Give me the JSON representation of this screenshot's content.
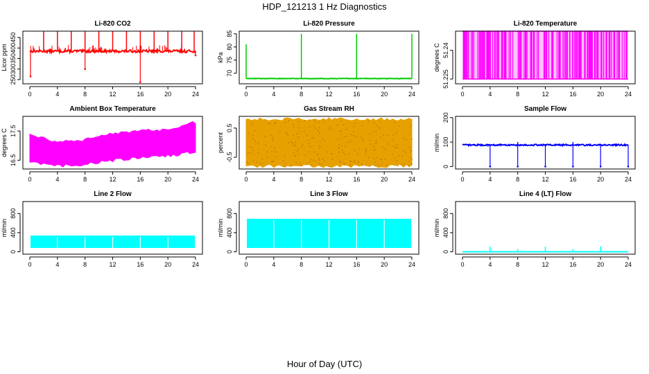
{
  "figure": {
    "title": "HDP_121213  1 Hz Diagnostics",
    "xlabel": "Hour of Day (UTC)"
  },
  "chart_data": [
    {
      "type": "line",
      "title": "Li-820 CO2",
      "ylabel": "Licor ppm",
      "color": "#ff0000",
      "style": "spiky",
      "xticks": [
        0,
        4,
        8,
        12,
        16,
        20,
        24
      ],
      "xlim": [
        0,
        24
      ],
      "yticks": [
        250,
        300,
        350,
        400,
        450
      ],
      "ylim": [
        230,
        480
      ],
      "base": 385,
      "noise": 6,
      "spikes": [
        {
          "x": 2.0,
          "y": 480
        },
        {
          "x": 4.0,
          "y": 480
        },
        {
          "x": 6.0,
          "y": 480
        },
        {
          "x": 8.0,
          "y": 480
        },
        {
          "x": 10.0,
          "y": 480
        },
        {
          "x": 12.0,
          "y": 480
        },
        {
          "x": 14.0,
          "y": 480
        },
        {
          "x": 16.0,
          "y": 480
        },
        {
          "x": 18.0,
          "y": 480
        },
        {
          "x": 20.0,
          "y": 480
        },
        {
          "x": 22.0,
          "y": 480
        },
        {
          "x": 23.8,
          "y": 480
        }
      ],
      "dips": [
        {
          "x": 0.1,
          "y": 265
        },
        {
          "x": 8.0,
          "y": 300
        },
        {
          "x": 16.0,
          "y": 238
        },
        {
          "x": 24.0,
          "y": 365
        }
      ]
    },
    {
      "type": "line",
      "title": "Li-820 Pressure",
      "ylabel": "kPa",
      "color": "#00cc00",
      "style": "spiky",
      "xticks": [
        0,
        4,
        8,
        12,
        16,
        20,
        24
      ],
      "xlim": [
        0,
        24
      ],
      "yticks": [
        70,
        75,
        80,
        85
      ],
      "ylim": [
        66,
        86
      ],
      "base": 68,
      "noise": 0.1,
      "spikes": [
        {
          "x": 0.0,
          "y": 81
        },
        {
          "x": 8.0,
          "y": 85
        },
        {
          "x": 16.0,
          "y": 85
        },
        {
          "x": 24.0,
          "y": 85
        }
      ],
      "dips": []
    },
    {
      "type": "line",
      "title": "Li-820 Temperature",
      "ylabel": "degrees C",
      "color": "#ff00ff",
      "style": "quantized",
      "xticks": [
        0,
        4,
        8,
        12,
        16,
        20,
        24
      ],
      "xlim": [
        0,
        24
      ],
      "yticks": [
        51.225,
        51.24
      ],
      "ylim": [
        51.2225,
        51.25
      ],
      "low": 51.225,
      "high": 51.25
    },
    {
      "type": "area",
      "title": "Ambient Box Temperature",
      "ylabel": "degrees C",
      "color": "#ff00ff",
      "style": "band",
      "xticks": [
        0,
        4,
        8,
        12,
        16,
        20,
        24
      ],
      "xlim": [
        0,
        24
      ],
      "yticks": [
        16.5,
        17.5
      ],
      "ylim": [
        16.2,
        18.0
      ],
      "x": [
        0,
        4,
        8,
        12,
        16,
        20,
        24
      ],
      "lower": [
        16.45,
        16.3,
        16.35,
        16.5,
        16.6,
        16.65,
        16.8
      ],
      "upper": [
        17.4,
        17.1,
        17.2,
        17.4,
        17.5,
        17.55,
        17.8
      ]
    },
    {
      "type": "scatter",
      "title": "Gas Stream RH",
      "ylabel": "percent",
      "color": "#e6a100",
      "style": "band",
      "xticks": [
        0,
        4,
        8,
        12,
        16,
        20,
        24
      ],
      "xlim": [
        0,
        24
      ],
      "yticks": [
        -0.5,
        0.5
      ],
      "ylim": [
        -0.9,
        0.9
      ],
      "x": [
        0,
        24
      ],
      "lower": [
        -0.8,
        -0.8
      ],
      "upper": [
        0.8,
        0.8
      ]
    },
    {
      "type": "line",
      "title": "Sample Flow",
      "ylabel": "ml/min",
      "color": "#0000ff",
      "style": "spiky",
      "xticks": [
        0,
        4,
        8,
        12,
        16,
        20,
        24
      ],
      "xlim": [
        0,
        24
      ],
      "yticks": [
        0,
        100,
        200
      ],
      "ylim": [
        -10,
        205
      ],
      "base": 88,
      "noise": 3,
      "spikes": [
        {
          "x": 8.0,
          "y": 100
        },
        {
          "x": 16.0,
          "y": 100
        }
      ],
      "dips": [
        {
          "x": 4.0,
          "y": 0
        },
        {
          "x": 8.0,
          "y": 0
        },
        {
          "x": 12.0,
          "y": 0
        },
        {
          "x": 16.0,
          "y": 0
        },
        {
          "x": 20.0,
          "y": 0
        },
        {
          "x": 24.0,
          "y": 0
        }
      ]
    },
    {
      "type": "area",
      "title": "Line 2 Flow",
      "ylabel": "ml/min",
      "color": "#00ffff",
      "style": "blocks",
      "xticks": [
        0,
        4,
        8,
        12,
        16,
        20,
        24
      ],
      "xlim": [
        0,
        24
      ],
      "yticks": [
        0,
        400,
        800
      ],
      "ylim": [
        -50,
        1050
      ],
      "x": [
        0,
        24
      ],
      "lower": [
        80,
        80
      ],
      "upper": [
        340,
        340
      ],
      "gaps": [
        4,
        8,
        12,
        16,
        20,
        24
      ]
    },
    {
      "type": "area",
      "title": "Line 3 Flow",
      "ylabel": "ml/min",
      "color": "#00ffff",
      "style": "blocks",
      "xticks": [
        0,
        4,
        8,
        12,
        16,
        20,
        24
      ],
      "xlim": [
        0,
        24
      ],
      "yticks": [
        0,
        400,
        800
      ],
      "ylim": [
        -50,
        1050
      ],
      "x": [
        0,
        24
      ],
      "lower": [
        80,
        80
      ],
      "upper": [
        690,
        690
      ],
      "gaps": [
        4,
        8,
        12,
        16,
        20,
        24
      ]
    },
    {
      "type": "line",
      "title": "Line 4 (LT) Flow",
      "ylabel": "ml/min",
      "color": "#00ffff",
      "style": "spiky",
      "xticks": [
        0,
        4,
        8,
        12,
        16,
        20,
        24
      ],
      "xlim": [
        0,
        24
      ],
      "yticks": [
        0,
        400,
        800
      ],
      "ylim": [
        -50,
        1050
      ],
      "base": 0,
      "noise": 0,
      "spikes": [
        {
          "x": 4.0,
          "y": 110
        },
        {
          "x": 8.0,
          "y": 60
        },
        {
          "x": 12.0,
          "y": 110
        },
        {
          "x": 16.0,
          "y": 60
        },
        {
          "x": 20.0,
          "y": 110
        }
      ],
      "dips": []
    }
  ]
}
